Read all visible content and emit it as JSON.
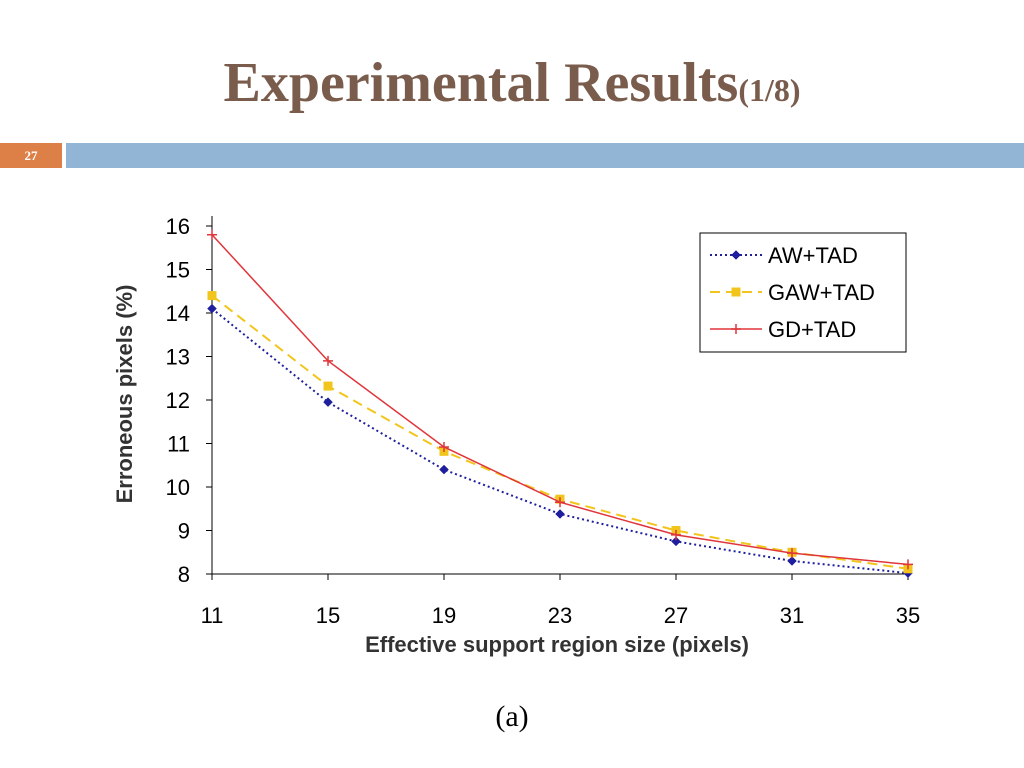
{
  "slide": {
    "title": "Experimental Results",
    "title_suffix": "(1/8)",
    "slide_number": "27",
    "caption": "(a)"
  },
  "colors": {
    "title": "#7a5c4d",
    "number_box": "#dd8048",
    "header_bar": "#92b5d6"
  },
  "chart_data": {
    "type": "line",
    "xlabel": "Effective support region size (pixels)",
    "ylabel": "Erroneous pixels (%)",
    "x": [
      11,
      15,
      19,
      23,
      27,
      31,
      35
    ],
    "ylim": [
      8,
      16
    ],
    "yticks": [
      8,
      9,
      10,
      11,
      12,
      13,
      14,
      15,
      16
    ],
    "legend_position": "top-right",
    "grid": false,
    "series": [
      {
        "name": "AW+TAD",
        "values": [
          14.1,
          11.95,
          10.4,
          9.38,
          8.75,
          8.3,
          8.02
        ],
        "color": "#1f1f9e",
        "marker": "diamond",
        "line": "dotted"
      },
      {
        "name": "GAW+TAD",
        "values": [
          14.4,
          12.32,
          10.82,
          9.72,
          9.0,
          8.5,
          8.12
        ],
        "color": "#f2c51c",
        "marker": "square",
        "line": "dashed"
      },
      {
        "name": "GD+TAD",
        "values": [
          15.8,
          12.9,
          10.92,
          9.65,
          8.9,
          8.48,
          8.22
        ],
        "color": "#e0353a",
        "marker": "plus",
        "line": "solid"
      }
    ]
  }
}
